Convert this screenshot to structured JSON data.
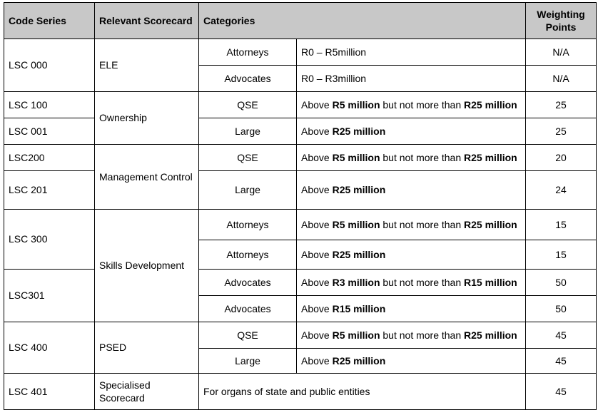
{
  "headers": {
    "code_series": "Code Series",
    "relevant_scorecard": "Relevant Scorecard",
    "categories": "Categories",
    "weighting_points": "Weighting Points"
  },
  "rows": [
    {
      "code": "LSC 000",
      "scorecard": "ELE",
      "category": "Attorneys",
      "range": "R0 – R5million",
      "points": "N/A"
    },
    {
      "category": "Advocates",
      "range": "R0 – R3million",
      "points": "N/A"
    },
    {
      "code": "LSC 100",
      "scorecard": "Ownership",
      "category": "QSE",
      "range_pre": "Above ",
      "range_b1": "R5 million",
      "range_mid": " but not more than ",
      "range_b2": "R25 million",
      "points": "25"
    },
    {
      "code": "LSC 001",
      "category": "Large",
      "range_pre": "Above ",
      "range_b1": "R25 million",
      "points": "25"
    },
    {
      "code": "LSC200",
      "scorecard": "Management Control",
      "category": "QSE",
      "range_pre": "Above ",
      "range_b1": "R5 million",
      "range_mid": " but not more than ",
      "range_b2": "R25 million",
      "points": "20"
    },
    {
      "code": "LSC 201",
      "category": "Large",
      "range_pre": "Above ",
      "range_b1": "R25 million",
      "points": "24"
    },
    {
      "code": "LSC 300",
      "scorecard": "Skills Development",
      "category": "Attorneys",
      "range_pre": "Above ",
      "range_b1": "R5 million",
      "range_mid": " but not more than ",
      "range_b2": "R25 million",
      "points": "15"
    },
    {
      "category": "Attorneys",
      "range_pre": "Above ",
      "range_b1": "R25 million",
      "points": "15"
    },
    {
      "code": "LSC301",
      "category": "Advocates",
      "range_pre": "Above ",
      "range_b1": "R3 million",
      "range_mid": " but not more than ",
      "range_b2": "R15 million",
      "points": "50"
    },
    {
      "category": "Advocates",
      "range_pre": "Above ",
      "range_b1": "R15 million",
      "points": "50"
    },
    {
      "code": "LSC 400",
      "scorecard": "PSED",
      "category": "QSE",
      "range_pre": "Above ",
      "range_b1": "R5 million",
      "range_mid": " but not more than ",
      "range_b2": "R25 million",
      "points": "45"
    },
    {
      "category": "Large",
      "range_pre": "Above ",
      "range_b1": "R25 million",
      "points": "45"
    },
    {
      "code": "LSC 401",
      "scorecard": "Specialised Scorecard",
      "category_full": "For organs of state and public entities",
      "points": "45"
    }
  ]
}
